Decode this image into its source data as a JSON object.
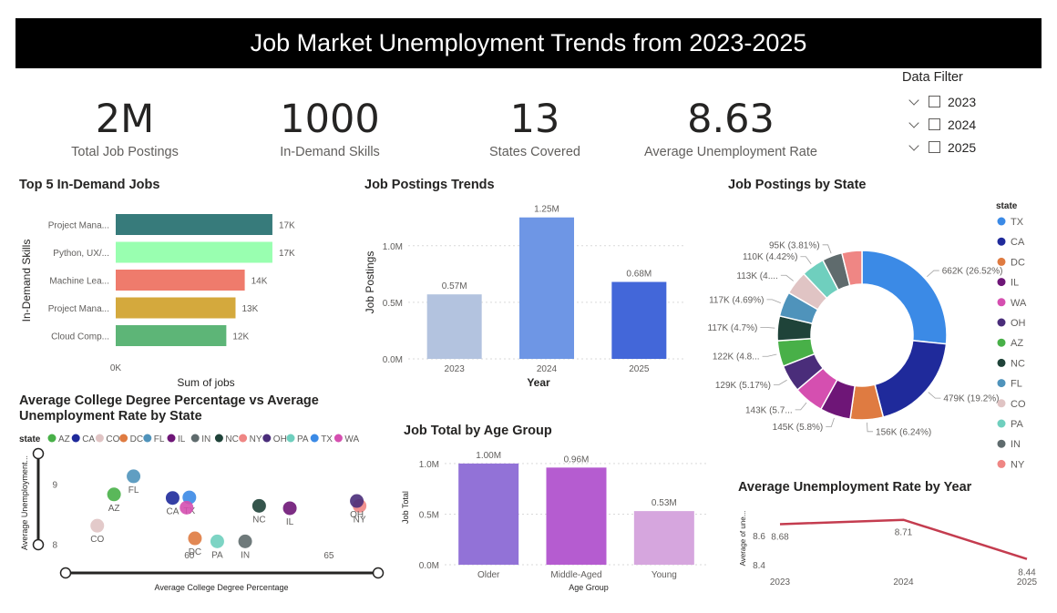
{
  "header": {
    "title": "Job Market Unemployment Trends from 2023-2025"
  },
  "kpis": [
    {
      "value": "2M",
      "label": "Total Job Postings"
    },
    {
      "value": "1000",
      "label": "In-Demand Skills"
    },
    {
      "value": "13",
      "label": "States Covered"
    },
    {
      "value": "8.63",
      "label": "Average Unemployment Rate"
    }
  ],
  "filter": {
    "title": "Data Filter",
    "options": [
      "2023",
      "2024",
      "2025"
    ]
  },
  "chart_data": [
    {
      "id": "top-jobs",
      "type": "bar",
      "orientation": "horizontal",
      "title": "Top 5 In-Demand Jobs",
      "xlabel": "Sum of jobs",
      "ylabel": "In-Demand Skills",
      "categories": [
        "Project Mana...",
        "Python, UX/...",
        "Machine Lea...",
        "Project Mana...",
        "Cloud Comp..."
      ],
      "values": [
        17000,
        17000,
        14000,
        13000,
        12000
      ],
      "data_labels": [
        "17K",
        "17K",
        "14K",
        "13K",
        "12K"
      ],
      "colors": [
        "#377b7b",
        "#99ffb0",
        "#ef7b6c",
        "#d4a93d",
        "#5db577"
      ],
      "xticks": [
        "0K"
      ],
      "xlim": [
        0,
        17500
      ]
    },
    {
      "id": "postings-trend",
      "type": "bar",
      "title": "Job Postings Trends",
      "xlabel": "Year",
      "ylabel": "Job Postings",
      "categories": [
        "2023",
        "2024",
        "2025"
      ],
      "values": [
        570000,
        1250000,
        680000
      ],
      "data_labels": [
        "0.57M",
        "1.25M",
        "0.68M"
      ],
      "colors": [
        "#b3c3df",
        "#6e96e5",
        "#4367d9"
      ],
      "yticks": [
        0,
        500000,
        1000000
      ],
      "ytick_labels": [
        "0.0M",
        "0.5M",
        "1.0M"
      ],
      "ylim": [
        0,
        1320000
      ],
      "grid": true
    },
    {
      "id": "postings-by-state",
      "type": "pie",
      "donut": true,
      "title": "Job Postings by State",
      "legend_title": "state",
      "legend_position": "right",
      "slices": [
        {
          "label": "TX",
          "value": 662,
          "text": "662K (26.52%)",
          "color": "#3b8ae6"
        },
        {
          "label": "CA",
          "value": 479,
          "text": "479K (19.2%)",
          "color": "#1f2a9b"
        },
        {
          "label": "DC",
          "value": 156,
          "text": "156K (6.24%)",
          "color": "#df7b41"
        },
        {
          "label": "IL",
          "value": 145,
          "text": "145K (5.8%)",
          "color": "#6e1677"
        },
        {
          "label": "WA",
          "value": 143,
          "text": "143K (5.7...",
          "color": "#d54fb0"
        },
        {
          "label": "OH",
          "value": 129,
          "text": "129K (5.17%)",
          "color": "#4a2d7a"
        },
        {
          "label": "AZ",
          "value": 122,
          "text": "122K (4.8...",
          "color": "#48b048"
        },
        {
          "label": "NC",
          "value": 117,
          "text": "117K (4.7%)",
          "color": "#1f4339"
        },
        {
          "label": "FL",
          "value": 117,
          "text": "117K (4.69%)",
          "color": "#4f93bb"
        },
        {
          "label": "CO",
          "value": 113,
          "text": "113K (4....",
          "color": "#e0c4c4"
        },
        {
          "label": "PA",
          "value": 110,
          "text": "110K (4.42%)",
          "color": "#6fcfbe"
        },
        {
          "label": "IN",
          "value": 95,
          "text": "95K (3.81%)",
          "color": "#5f6b6d"
        },
        {
          "label": "NY",
          "value": 95,
          "text": "",
          "color": "#ef8684"
        }
      ]
    },
    {
      "id": "degree-vs-unemployment",
      "type": "scatter",
      "title": "Average College Degree Percentage vs Average Unemployment Rate by State",
      "xlabel": "Average College Degree Percentage",
      "ylabel": "Average Unemployment...",
      "legend_title": "state",
      "legend_position": "top",
      "xticks": [
        60,
        65
      ],
      "yticks": [
        8,
        9
      ],
      "xlim": [
        55.5,
        66.7
      ],
      "ylim": [
        7.98,
        9.28
      ],
      "points": [
        {
          "label": "AZ",
          "x": 57.3,
          "y": 8.83,
          "color": "#48b048",
          "show_label": true
        },
        {
          "label": "CA",
          "x": 59.4,
          "y": 8.77,
          "color": "#1f2a9b",
          "show_label": true
        },
        {
          "label": "CO",
          "x": 56.7,
          "y": 8.31,
          "color": "#e0c4c4",
          "show_label": true
        },
        {
          "label": "DC",
          "x": 60.2,
          "y": 8.1,
          "color": "#df7b41",
          "show_label": true
        },
        {
          "label": "FL",
          "x": 58.0,
          "y": 9.13,
          "color": "#4f93bb",
          "show_label": true
        },
        {
          "label": "IL",
          "x": 63.6,
          "y": 8.6,
          "color": "#6e1677",
          "show_label": true
        },
        {
          "label": "IN",
          "x": 62.0,
          "y": 8.05,
          "color": "#5f6b6d",
          "show_label": true
        },
        {
          "label": "NC",
          "x": 62.5,
          "y": 8.64,
          "color": "#1f4339",
          "show_label": true
        },
        {
          "label": "NY",
          "x": 66.1,
          "y": 8.64,
          "color": "#ef8684",
          "show_label": true
        },
        {
          "label": "OH",
          "x": 66.0,
          "y": 8.72,
          "color": "#4a2d7a",
          "show_label": true
        },
        {
          "label": "PA",
          "x": 61.0,
          "y": 8.05,
          "color": "#6fcfbe",
          "show_label": true
        },
        {
          "label": "TX",
          "x": 60.0,
          "y": 8.78,
          "color": "#3b8ae6",
          "show_label": true
        },
        {
          "label": "WA",
          "x": 59.9,
          "y": 8.61,
          "color": "#d54fb0",
          "show_label": false
        }
      ]
    },
    {
      "id": "age-group",
      "type": "bar",
      "title": "Job Total by Age Group",
      "xlabel": "Age Group",
      "ylabel": "Job Total",
      "categories": [
        "Older",
        "Middle-Aged",
        "Young"
      ],
      "values": [
        1000000,
        960000,
        530000
      ],
      "data_labels": [
        "1.00M",
        "0.96M",
        "0.53M"
      ],
      "colors": [
        "#9272d7",
        "#b55cd0",
        "#d6a6de"
      ],
      "yticks": [
        0,
        500000,
        1000000
      ],
      "ytick_labels": [
        "0.0M",
        "0.5M",
        "1.0M"
      ],
      "ylim": [
        0,
        1080000
      ],
      "grid": true
    },
    {
      "id": "unemployment-by-year",
      "type": "line",
      "title": "Average Unemployment Rate by Year",
      "ylabel": "Average of une...",
      "x": [
        "2023",
        "2024",
        "2025"
      ],
      "values": [
        8.68,
        8.71,
        8.44
      ],
      "data_labels": [
        "8.68",
        "8.71",
        "8.44"
      ],
      "color": "#c43c4f",
      "yticks": [
        8.4,
        8.6
      ],
      "ytick_labels": [
        "8.4",
        "8.6"
      ],
      "ylim": [
        8.35,
        8.79
      ]
    }
  ]
}
